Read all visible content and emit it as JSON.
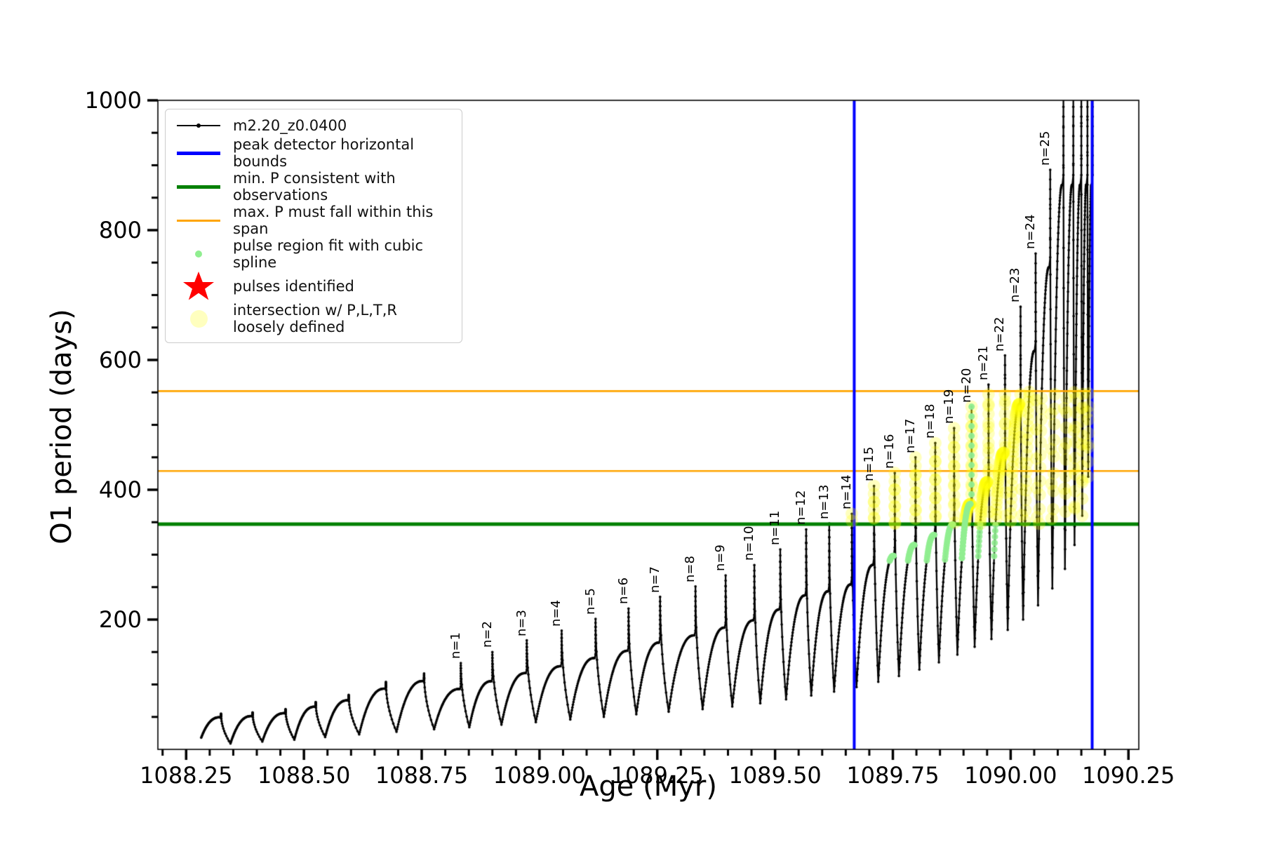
{
  "legend": {
    "items": [
      {
        "label": "m2.20_z0.0400",
        "handle": "line-with-dot-marker",
        "color": "#000000"
      },
      {
        "label": "peak detector horizontal bounds",
        "handle": "thick-line",
        "color": "#0000ff"
      },
      {
        "label": "min. P consistent with observations",
        "handle": "thick-line",
        "color": "#008000"
      },
      {
        "label": "max. P must fall within this span",
        "handle": "line",
        "color": "#ffa500"
      },
      {
        "label": "pulse region fit with cubic spline",
        "handle": "small-dot",
        "color": "#90ee90"
      },
      {
        "label": "pulses identified",
        "handle": "star",
        "color": "#ff0000"
      },
      {
        "label": "intersection w/ P,L,T,R\nloosely defined",
        "handle": "large-pale-dot",
        "color": "rgba(255,255,0,0.25)"
      }
    ]
  },
  "chart_data": {
    "type": "line",
    "series_label": "m2.20_z0.0400",
    "xlabel": "Age (Myr)",
    "ylabel": "O1 period (days)",
    "xlim": [
      1088.19,
      1090.272
    ],
    "ylim": [
      0,
      1000
    ],
    "x_major_ticks": [
      "1088.25",
      "1088.50",
      "1088.75",
      "1089.00",
      "1089.25",
      "1089.50",
      "1089.75",
      "1090.00",
      "1090.25"
    ],
    "x_major_tick_values": [
      1088.25,
      1088.5,
      1088.75,
      1089.0,
      1089.25,
      1089.5,
      1089.75,
      1090.0,
      1090.25
    ],
    "x_minor_tick_step": 0.05,
    "y_major_ticks": [
      "200",
      "400",
      "600",
      "800",
      "1000"
    ],
    "y_major_tick_values": [
      200,
      400,
      600,
      800,
      1000
    ],
    "y_minor_tick_step": 50,
    "hlines": {
      "min_p_days": 347,
      "max_p_span_days": [
        429,
        552
      ]
    },
    "vlines_age": [
      1089.668,
      1090.173
    ],
    "yellow_intersection_band": {
      "p_range": [
        347,
        552
      ],
      "age_range": [
        1089.656,
        1090.18
      ]
    },
    "spline_fit_dots": {
      "cycle_labels": [
        "n=16",
        "n=17",
        "n=18",
        "n=19",
        "n=20",
        "n=21",
        "n=22"
      ],
      "p_range": [
        290,
        350
      ],
      "highlight_cycle": "n=20",
      "highlight_p_range": [
        290,
        528
      ]
    },
    "start_point": {
      "age": 1088.282,
      "period": 18
    },
    "cycles": [
      {
        "label": null,
        "age": 1088.324,
        "peak": 55,
        "trough_after": 9
      },
      {
        "label": null,
        "age": 1088.391,
        "peak": 57,
        "trough_after": 12
      },
      {
        "label": null,
        "age": 1088.461,
        "peak": 62,
        "trough_after": 15
      },
      {
        "label": null,
        "age": 1088.525,
        "peak": 73,
        "trough_after": 19
      },
      {
        "label": null,
        "age": 1088.595,
        "peak": 84,
        "trough_after": 23
      },
      {
        "label": null,
        "age": 1088.674,
        "peak": 104,
        "trough_after": 27
      },
      {
        "label": null,
        "age": 1088.755,
        "peak": 117,
        "trough_after": 31
      },
      {
        "label": "n=1",
        "age": 1088.833,
        "peak": 133,
        "trough_after": 34
      },
      {
        "label": "n=2",
        "age": 1088.9,
        "peak": 150,
        "trough_after": 38
      },
      {
        "label": "n=3",
        "age": 1088.973,
        "peak": 168,
        "trough_after": 42
      },
      {
        "label": "n=4",
        "age": 1089.047,
        "peak": 183,
        "trough_after": 46
      },
      {
        "label": "n=5",
        "age": 1089.119,
        "peak": 201,
        "trough_after": 50
      },
      {
        "label": "n=6",
        "age": 1089.189,
        "peak": 217,
        "trough_after": 54
      },
      {
        "label": "n=7",
        "age": 1089.256,
        "peak": 235,
        "trough_after": 58
      },
      {
        "label": "n=8",
        "age": 1089.331,
        "peak": 251,
        "trough_after": 62
      },
      {
        "label": "n=9",
        "age": 1089.395,
        "peak": 268,
        "trough_after": 66
      },
      {
        "label": "n=10",
        "age": 1089.456,
        "peak": 284,
        "trough_after": 71
      },
      {
        "label": "n=11",
        "age": 1089.511,
        "peak": 308,
        "trough_after": 77
      },
      {
        "label": "n=12",
        "age": 1089.566,
        "peak": 339,
        "trough_after": 83
      },
      {
        "label": "n=13",
        "age": 1089.615,
        "peak": 348,
        "trough_after": 89
      },
      {
        "label": "n=14",
        "age": 1089.663,
        "peak": 363,
        "trough_after": 96
      },
      {
        "label": "n=15",
        "age": 1089.71,
        "peak": 406,
        "trough_after": 104
      },
      {
        "label": "n=16",
        "age": 1089.754,
        "peak": 426,
        "trough_after": 113
      },
      {
        "label": "n=17",
        "age": 1089.798,
        "peak": 450,
        "trough_after": 123
      },
      {
        "label": "n=18",
        "age": 1089.84,
        "peak": 472,
        "trough_after": 134
      },
      {
        "label": "n=19",
        "age": 1089.88,
        "peak": 495,
        "trough_after": 146
      },
      {
        "label": "n=20",
        "age": 1089.917,
        "peak": 528,
        "trough_after": 158
      },
      {
        "label": "n=21",
        "age": 1089.953,
        "peak": 562,
        "trough_after": 170
      },
      {
        "label": "n=22",
        "age": 1089.988,
        "peak": 607,
        "trough_after": 184
      },
      {
        "label": "n=23",
        "age": 1090.021,
        "peak": 682,
        "trough_after": 200
      },
      {
        "label": "n=24",
        "age": 1090.053,
        "peak": 764,
        "trough_after": 222
      },
      {
        "label": "n=25",
        "age": 1090.084,
        "peak": 893,
        "trough_after": 248
      },
      {
        "label": null,
        "age": 1090.112,
        "peak": 1020,
        "trough_after": 278
      },
      {
        "label": null,
        "age": 1090.133,
        "peak": 1020,
        "trough_after": 315
      },
      {
        "label": null,
        "age": 1090.15,
        "peak": 1020,
        "trough_after": 360
      },
      {
        "label": null,
        "age": 1090.163,
        "peak": 1020,
        "trough_after": 420
      },
      {
        "label": null,
        "age": 1090.174,
        "peak": 1020,
        "trough_after": null
      }
    ],
    "colors": {
      "series": "#000000",
      "peak_detector_bounds": "#0000ff",
      "min_p_line": "#008000",
      "max_p_lines": "#ffa500",
      "spline_dots": "#90ee90",
      "pulses_stars": "#ff0000",
      "intersection_dots": "#ffff00"
    }
  }
}
